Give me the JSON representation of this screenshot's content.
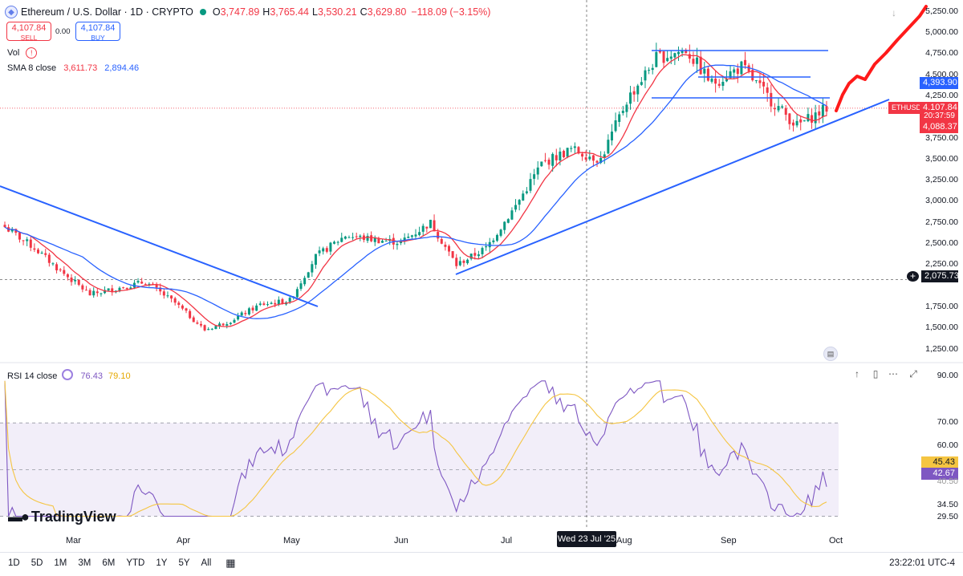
{
  "header": {
    "symbol": "Ethereum / U.S. Dollar · 1D · CRYPTO",
    "O": "3,747.89",
    "H": "3,765.44",
    "L": "3,530.21",
    "C": "3,629.80",
    "change": "−118.09 (−3.15%)"
  },
  "trade": {
    "sell_price": "4,107.84",
    "sell_label": "SELL",
    "spread": "0.00",
    "buy_price": "4,107.84",
    "buy_label": "BUY"
  },
  "indicators": {
    "vol_label": "Vol",
    "sma_label": "SMA 8 close",
    "sma_val1": "3,611.73",
    "sma_val2": "2,894.46",
    "rsi_label": "RSI 14 close",
    "rsi_val1": "76.43",
    "rsi_val2": "79.10"
  },
  "price_axis": [
    "5,250.00",
    "5,000.00",
    "4,750.00",
    "4,500.00",
    "4,250.00",
    "3,750.00",
    "3,500.00",
    "3,250.00",
    "3,000.00",
    "2,750.00",
    "2,500.00",
    "2,250.00",
    "1,750.00",
    "1,500.00",
    "1,250.00"
  ],
  "rsi_axis": [
    "90.00",
    "70.00",
    "60.00",
    "34.50",
    "29.50"
  ],
  "price_tags": {
    "sma_blue": "4,393.90",
    "symbol_tag": "ETHUSD",
    "last_price": "4,107.84",
    "countdown": "20:37:59",
    "red_level": "4,088.37",
    "crosshair_price": "2,075.73",
    "rsi_a": "45.43",
    "rsi_b": "42.67",
    "rsi_partial": "40.50"
  },
  "x_axis": [
    "Mar",
    "Apr",
    "May",
    "Jun",
    "Jul",
    "Aug",
    "Sep",
    "Oct"
  ],
  "crosshair_date": "Wed 23 Jul '25",
  "logo": "TradingView",
  "bottom": {
    "timeframes": [
      "1D",
      "5D",
      "1M",
      "3M",
      "6M",
      "YTD",
      "1Y",
      "5Y",
      "All"
    ],
    "clock": "23:22:01 UTC-4"
  },
  "colors": {
    "up": "#089981",
    "down": "#f23645",
    "sma_fast": "#f23645",
    "sma_slow": "#2962ff",
    "rsi": "#7e57c2",
    "rsi_ma": "#f5c542",
    "trendline": "#2962ff",
    "projection": "#ff1a1a"
  },
  "chart_data": {
    "type": "candlestick",
    "title": "Ethereum / U.S. Dollar · 1D · CRYPTO",
    "price_range": [
      1200,
      5300
    ],
    "x_labels": [
      "Mar",
      "Apr",
      "May",
      "Jun",
      "Jul",
      "Aug",
      "Sep",
      "Oct"
    ],
    "approx_close_path": [
      {
        "date": "Feb 18",
        "close": 2700
      },
      {
        "date": "Feb 26",
        "close": 2450
      },
      {
        "date": "Mar 4",
        "close": 2180
      },
      {
        "date": "Mar 11",
        "close": 1900
      },
      {
        "date": "Mar 20",
        "close": 1980
      },
      {
        "date": "Mar 27",
        "close": 2050
      },
      {
        "date": "Apr 3",
        "close": 1800
      },
      {
        "date": "Apr 9",
        "close": 1480
      },
      {
        "date": "Apr 17",
        "close": 1590
      },
      {
        "date": "Apr 23",
        "close": 1780
      },
      {
        "date": "May 1",
        "close": 1830
      },
      {
        "date": "May 8",
        "close": 2350
      },
      {
        "date": "May 13",
        "close": 2600
      },
      {
        "date": "May 20",
        "close": 2550
      },
      {
        "date": "Jun 1",
        "close": 2520
      },
      {
        "date": "Jun 11",
        "close": 2750
      },
      {
        "date": "Jun 22",
        "close": 2250
      },
      {
        "date": "Jul 1",
        "close": 2450
      },
      {
        "date": "Jul 10",
        "close": 2950
      },
      {
        "date": "Jul 17",
        "close": 3450
      },
      {
        "date": "Jul 23",
        "close": 3620
      },
      {
        "date": "Aug 2",
        "close": 3500
      },
      {
        "date": "Aug 10",
        "close": 4200
      },
      {
        "date": "Aug 14",
        "close": 4700
      },
      {
        "date": "Aug 22",
        "close": 4800
      },
      {
        "date": "Aug 28",
        "close": 4400
      },
      {
        "date": "Sep 12",
        "close": 4600
      },
      {
        "date": "Sep 22",
        "close": 4200
      },
      {
        "date": "Sep 25",
        "close": 3900
      },
      {
        "date": "Sep 29",
        "close": 4107.84
      }
    ],
    "sma_fast_last": 4088.37,
    "sma_slow_last": 4393.9,
    "horizontal_levels": [
      4780,
      4450,
      4200,
      2075.73
    ],
    "rsi": {
      "range": [
        29.5,
        90
      ],
      "overbought": 70,
      "oversold": 30,
      "last": 42.67,
      "ma_last": 45.43
    }
  }
}
